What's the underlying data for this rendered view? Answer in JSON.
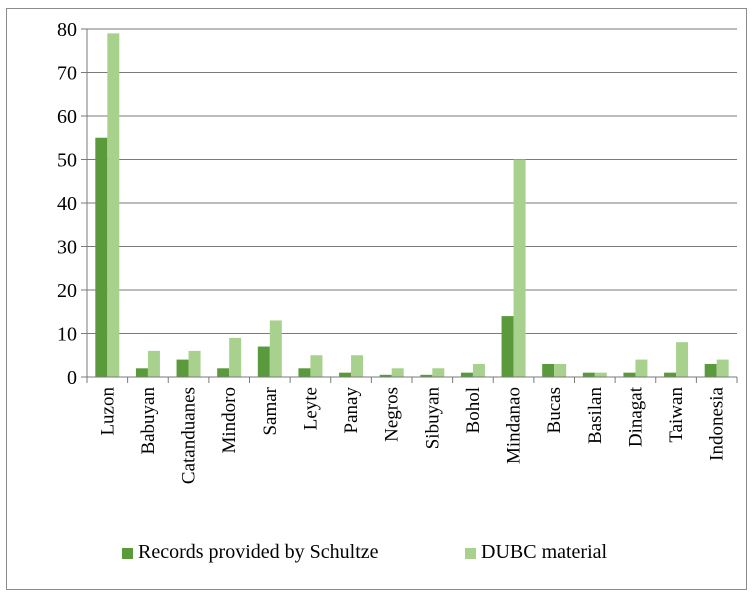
{
  "chart_data": {
    "type": "bar",
    "categories": [
      "Luzon",
      "Babuyan",
      "Catanduanes",
      "Mindoro",
      "Samar",
      "Leyte",
      "Panay",
      "Negros",
      "Sibuyan",
      "Bohol",
      "Mindanao",
      "Bucas",
      "Basilan",
      "Dinagat",
      "Taiwan",
      "Indonesia"
    ],
    "series": [
      {
        "name": "Records provided by Schultze",
        "color": "#5a9a3c",
        "values": [
          55,
          2,
          4,
          2,
          7,
          2,
          1,
          0.5,
          0.5,
          1,
          14,
          3,
          1,
          1,
          1,
          3
        ]
      },
      {
        "name": "DUBC material",
        "color": "#a8d18d",
        "values": [
          79,
          6,
          6,
          9,
          13,
          5,
          5,
          2,
          2,
          3,
          50,
          3,
          1,
          4,
          8,
          4
        ]
      }
    ],
    "yticks": [
      "0",
      "10",
      "20",
      "30",
      "40",
      "50",
      "60",
      "70",
      "80"
    ],
    "ylim": [
      0,
      80
    ],
    "grid": true,
    "legend_position": "bottom"
  }
}
